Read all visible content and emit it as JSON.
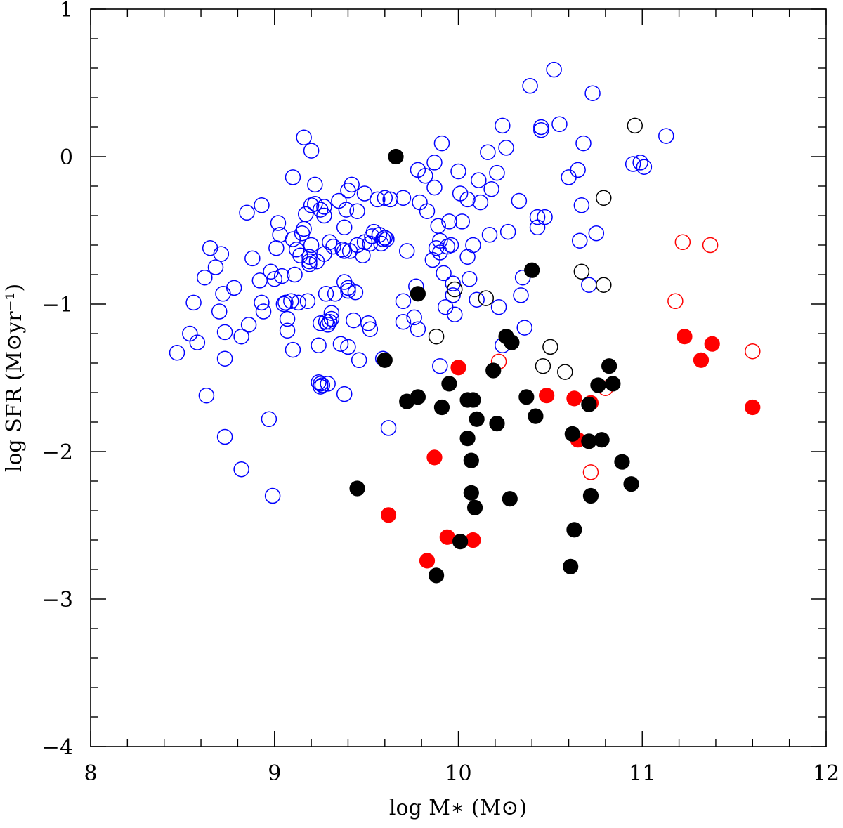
{
  "chart_data": {
    "type": "scatter",
    "title": "",
    "xlabel": "log M∗ (M⊙)",
    "ylabel": "log SFR (M⊙yr⁻¹)",
    "xlim": [
      8,
      12
    ],
    "ylim": [
      -4,
      1
    ],
    "x_ticks": [
      "8",
      "9",
      "10",
      "11",
      "12"
    ],
    "y_ticks": [
      "−4",
      "−3",
      "−2",
      "−1",
      "0",
      "1"
    ],
    "legend": null,
    "series": [
      {
        "name": "blue open",
        "color": "#0000ff",
        "filled": false,
        "points": [
          [
            8.47,
            -1.33
          ],
          [
            8.54,
            -1.2
          ],
          [
            8.56,
            -0.99
          ],
          [
            8.58,
            -1.26
          ],
          [
            8.62,
            -0.82
          ],
          [
            8.63,
            -1.62
          ],
          [
            8.65,
            -0.62
          ],
          [
            8.68,
            -0.75
          ],
          [
            8.7,
            -1.05
          ],
          [
            8.71,
            -0.66
          ],
          [
            8.72,
            -0.93
          ],
          [
            8.73,
            -1.19
          ],
          [
            8.73,
            -1.37
          ],
          [
            8.73,
            -1.9
          ],
          [
            8.78,
            -0.89
          ],
          [
            8.82,
            -1.22
          ],
          [
            8.82,
            -2.12
          ],
          [
            8.85,
            -0.38
          ],
          [
            8.86,
            -1.14
          ],
          [
            8.88,
            -0.69
          ],
          [
            8.92,
            -0.84
          ],
          [
            8.93,
            -0.33
          ],
          [
            8.93,
            -0.99
          ],
          [
            8.94,
            -1.05
          ],
          [
            8.97,
            -1.78
          ],
          [
            8.98,
            -0.78
          ],
          [
            8.99,
            -2.3
          ],
          [
            9.0,
            -0.83
          ],
          [
            9.01,
            -0.62
          ],
          [
            9.02,
            -0.45
          ],
          [
            9.03,
            -0.53
          ],
          [
            9.04,
            -0.81
          ],
          [
            9.05,
            -1.0
          ],
          [
            9.06,
            -0.99
          ],
          [
            9.07,
            -1.18
          ],
          [
            9.07,
            -1.1
          ],
          [
            9.09,
            -0.98
          ],
          [
            9.1,
            -1.31
          ],
          [
            9.1,
            -0.56
          ],
          [
            9.1,
            -0.14
          ],
          [
            9.11,
            -0.8
          ],
          [
            9.12,
            -0.63
          ],
          [
            9.13,
            -0.99
          ],
          [
            9.14,
            -0.67
          ],
          [
            9.15,
            -0.52
          ],
          [
            9.16,
            -0.49
          ],
          [
            9.16,
            0.13
          ],
          [
            9.17,
            -0.39
          ],
          [
            9.18,
            -0.98
          ],
          [
            9.19,
            -0.71
          ],
          [
            9.19,
            -0.73
          ],
          [
            9.19,
            -0.68
          ],
          [
            9.2,
            -0.33
          ],
          [
            9.2,
            -0.6
          ],
          [
            9.2,
            0.04
          ],
          [
            9.22,
            -0.32
          ],
          [
            9.22,
            -0.19
          ],
          [
            9.23,
            -0.71
          ],
          [
            9.24,
            -1.28
          ],
          [
            9.24,
            -1.53
          ],
          [
            9.25,
            -0.36
          ],
          [
            9.25,
            -1.13
          ],
          [
            9.25,
            -1.54
          ],
          [
            9.25,
            -1.56
          ],
          [
            9.26,
            -1.55
          ],
          [
            9.27,
            -0.34
          ],
          [
            9.27,
            -0.4
          ],
          [
            9.27,
            -0.66
          ],
          [
            9.28,
            -0.93
          ],
          [
            9.28,
            -1.12
          ],
          [
            9.29,
            -1.14
          ],
          [
            9.29,
            -1.54
          ],
          [
            9.3,
            -1.12
          ],
          [
            9.3,
            -0.58
          ],
          [
            9.31,
            -1.06
          ],
          [
            9.31,
            -1.1
          ],
          [
            9.32,
            -0.61
          ],
          [
            9.33,
            -0.93
          ],
          [
            9.35,
            -0.3
          ],
          [
            9.36,
            -1.27
          ],
          [
            9.37,
            -0.63
          ],
          [
            9.38,
            -0.48
          ],
          [
            9.38,
            -0.64
          ],
          [
            9.38,
            -0.85
          ],
          [
            9.38,
            -1.61
          ],
          [
            9.39,
            -0.36
          ],
          [
            9.4,
            -0.89
          ],
          [
            9.4,
            -0.91
          ],
          [
            9.4,
            -1.29
          ],
          [
            9.4,
            -0.23
          ],
          [
            9.41,
            -0.64
          ],
          [
            9.42,
            -0.19
          ],
          [
            9.43,
            -1.11
          ],
          [
            9.44,
            -0.92
          ],
          [
            9.45,
            -0.37
          ],
          [
            9.45,
            -0.6
          ],
          [
            9.46,
            -1.38
          ],
          [
            9.48,
            -0.67
          ],
          [
            9.49,
            -0.58
          ],
          [
            9.49,
            -0.25
          ],
          [
            9.51,
            -1.13
          ],
          [
            9.52,
            -1.17
          ],
          [
            9.52,
            -0.59
          ],
          [
            9.53,
            -0.54
          ],
          [
            9.54,
            -0.51
          ],
          [
            9.56,
            -0.29
          ],
          [
            9.57,
            -0.53
          ],
          [
            9.58,
            -0.59
          ],
          [
            9.59,
            -0.56
          ],
          [
            9.59,
            -1.37
          ],
          [
            9.6,
            -0.28
          ],
          [
            9.6,
            -0.55
          ],
          [
            9.61,
            -0.56
          ],
          [
            9.62,
            -1.84
          ],
          [
            9.63,
            -0.29
          ],
          [
            9.7,
            -0.98
          ],
          [
            9.7,
            -0.28
          ],
          [
            9.7,
            -1.12
          ],
          [
            9.72,
            -0.64
          ],
          [
            9.76,
            -1.09
          ],
          [
            9.77,
            -0.88
          ],
          [
            9.78,
            -0.09
          ],
          [
            9.78,
            -1.17
          ],
          [
            9.79,
            -0.31
          ],
          [
            9.82,
            -0.13
          ],
          [
            9.83,
            -0.37
          ],
          [
            9.86,
            -0.7
          ],
          [
            9.87,
            -0.04
          ],
          [
            9.87,
            -0.21
          ],
          [
            9.88,
            -0.62
          ],
          [
            9.89,
            -0.47
          ],
          [
            9.9,
            -0.57
          ],
          [
            9.9,
            -0.65
          ],
          [
            9.9,
            -1.42
          ],
          [
            9.91,
            0.09
          ],
          [
            9.92,
            -0.79
          ],
          [
            9.93,
            -1.02
          ],
          [
            9.94,
            -0.61
          ],
          [
            9.95,
            -0.44
          ],
          [
            9.96,
            -0.6
          ],
          [
            9.97,
            -0.86
          ],
          [
            9.97,
            -0.94
          ],
          [
            9.98,
            -1.07
          ],
          [
            10.0,
            -0.1
          ],
          [
            10.01,
            -0.25
          ],
          [
            10.02,
            -0.44
          ],
          [
            10.05,
            -0.29
          ],
          [
            10.05,
            -0.68
          ],
          [
            10.06,
            -0.83
          ],
          [
            10.08,
            -0.6
          ],
          [
            10.1,
            -0.97
          ],
          [
            10.11,
            -0.16
          ],
          [
            10.12,
            -0.31
          ],
          [
            10.16,
            0.03
          ],
          [
            10.17,
            -0.53
          ],
          [
            10.18,
            -0.22
          ],
          [
            10.21,
            -0.11
          ],
          [
            10.22,
            -1.02
          ],
          [
            10.24,
            0.21
          ],
          [
            10.24,
            -1.28
          ],
          [
            10.26,
            0.06
          ],
          [
            10.27,
            -0.51
          ],
          [
            10.33,
            -0.3
          ],
          [
            10.34,
            -0.94
          ],
          [
            10.35,
            -0.82
          ],
          [
            10.36,
            -1.16
          ],
          [
            10.39,
            0.48
          ],
          [
            10.43,
            -0.48
          ],
          [
            10.43,
            -0.41
          ],
          [
            10.45,
            0.18
          ],
          [
            10.45,
            0.2
          ],
          [
            10.47,
            -0.41
          ],
          [
            10.52,
            0.59
          ],
          [
            10.55,
            0.22
          ],
          [
            10.6,
            -0.14
          ],
          [
            10.65,
            -0.09
          ],
          [
            10.66,
            -0.57
          ],
          [
            10.67,
            -0.33
          ],
          [
            10.68,
            0.09
          ],
          [
            10.71,
            -0.87
          ],
          [
            10.73,
            0.43
          ],
          [
            10.75,
            -0.52
          ],
          [
            10.95,
            -0.05
          ],
          [
            10.99,
            -0.04
          ],
          [
            11.01,
            -0.07
          ],
          [
            11.13,
            0.14
          ]
        ]
      },
      {
        "name": "black open",
        "color": "#000000",
        "filled": false,
        "points": [
          [
            9.88,
            -1.22
          ],
          [
            9.98,
            -0.9
          ],
          [
            10.15,
            -0.96
          ],
          [
            10.46,
            -1.42
          ],
          [
            10.5,
            -1.29
          ],
          [
            10.58,
            -1.46
          ],
          [
            10.67,
            -0.78
          ],
          [
            10.79,
            -0.87
          ],
          [
            10.79,
            -0.28
          ],
          [
            10.96,
            0.21
          ]
        ]
      },
      {
        "name": "red open",
        "color": "#ff0000",
        "filled": false,
        "points": [
          [
            10.22,
            -1.39
          ],
          [
            10.72,
            -2.14
          ],
          [
            10.8,
            -1.57
          ],
          [
            11.18,
            -0.98
          ],
          [
            11.22,
            -0.58
          ],
          [
            11.37,
            -0.6
          ],
          [
            11.6,
            -1.32
          ]
        ]
      },
      {
        "name": "red filled",
        "color": "#ff0000",
        "filled": true,
        "points": [
          [
            9.62,
            -2.43
          ],
          [
            9.83,
            -2.74
          ],
          [
            9.87,
            -2.04
          ],
          [
            9.94,
            -2.58
          ],
          [
            10.0,
            -1.43
          ],
          [
            10.08,
            -2.6
          ],
          [
            10.48,
            -1.62
          ],
          [
            10.63,
            -1.64
          ],
          [
            10.65,
            -1.92
          ],
          [
            10.72,
            -1.67
          ],
          [
            11.23,
            -1.22
          ],
          [
            11.32,
            -1.38
          ],
          [
            11.38,
            -1.27
          ],
          [
            11.6,
            -1.7
          ]
        ]
      },
      {
        "name": "black filled",
        "color": "#000000",
        "filled": true,
        "points": [
          [
            9.45,
            -2.25
          ],
          [
            9.6,
            -1.38
          ],
          [
            9.66,
            0.0
          ],
          [
            9.72,
            -1.66
          ],
          [
            9.78,
            -1.63
          ],
          [
            9.78,
            -0.93
          ],
          [
            9.88,
            -2.84
          ],
          [
            9.91,
            -1.7
          ],
          [
            9.95,
            -1.54
          ],
          [
            10.01,
            -2.61
          ],
          [
            10.05,
            -1.65
          ],
          [
            10.05,
            -1.91
          ],
          [
            10.07,
            -2.06
          ],
          [
            10.07,
            -2.28
          ],
          [
            10.08,
            -1.65
          ],
          [
            10.09,
            -2.38
          ],
          [
            10.1,
            -1.78
          ],
          [
            10.19,
            -1.45
          ],
          [
            10.21,
            -1.81
          ],
          [
            10.26,
            -1.22
          ],
          [
            10.29,
            -1.26
          ],
          [
            10.28,
            -2.32
          ],
          [
            10.37,
            -1.63
          ],
          [
            10.4,
            -0.77
          ],
          [
            10.42,
            -1.76
          ],
          [
            10.61,
            -2.78
          ],
          [
            10.62,
            -1.88
          ],
          [
            10.63,
            -2.53
          ],
          [
            10.71,
            -1.68
          ],
          [
            10.71,
            -1.93
          ],
          [
            10.72,
            -2.3
          ],
          [
            10.76,
            -1.55
          ],
          [
            10.78,
            -1.92
          ],
          [
            10.82,
            -1.42
          ],
          [
            10.84,
            -1.54
          ],
          [
            10.89,
            -2.07
          ],
          [
            10.94,
            -2.22
          ]
        ]
      }
    ]
  }
}
